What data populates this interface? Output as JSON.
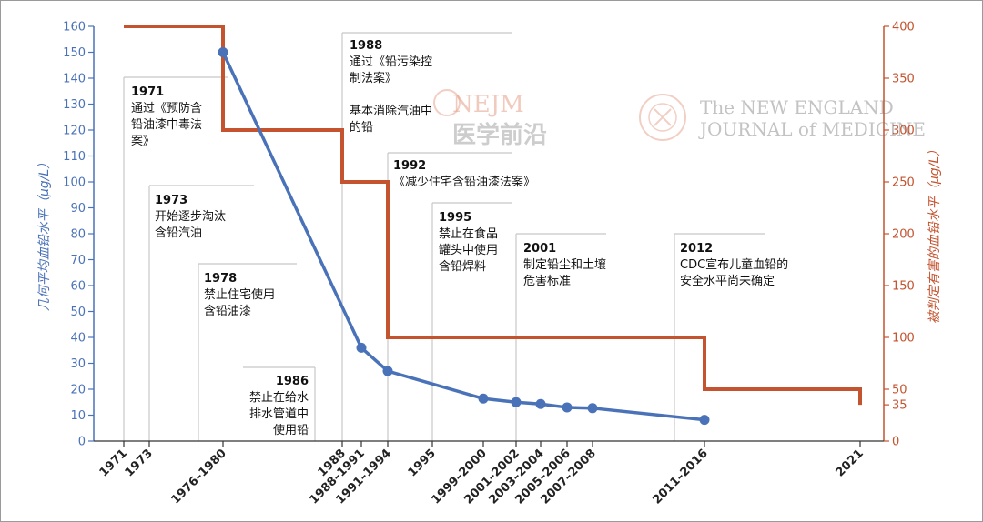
{
  "chart_data": {
    "type": "line",
    "x_ticks": [
      "1971",
      "1973",
      "1976–1980",
      "1988",
      "1988–1991",
      "1991–1994",
      "1995",
      "1999–2000",
      "2001–2002",
      "2003–2004",
      "2005–2006",
      "2007–2008",
      "2011–2016",
      "2021"
    ],
    "y_left": {
      "label": "几何平均血铅水平（μg/L）",
      "ticks": [
        0,
        10,
        20,
        30,
        40,
        50,
        60,
        70,
        80,
        90,
        100,
        110,
        120,
        130,
        140,
        150,
        160
      ],
      "range": [
        0,
        160
      ],
      "color": "#4a72b8"
    },
    "y_right": {
      "label": "被判定有害的血铅水平（μg/L）",
      "ticks": [
        0,
        35,
        50,
        100,
        150,
        200,
        250,
        300,
        350,
        400
      ],
      "range": [
        0,
        400
      ],
      "color": "#c4532f"
    },
    "series": [
      {
        "axis": "left",
        "color": "#4a72b8",
        "points": [
          {
            "x": "1976–1980",
            "y": 150
          },
          {
            "x": "1988–1991",
            "y": 36
          },
          {
            "x": "1991–1994",
            "y": 27
          },
          {
            "x": "1999–2000",
            "y": 16.4
          },
          {
            "x": "2001–2002",
            "y": 15
          },
          {
            "x": "2003–2004",
            "y": 14.3
          },
          {
            "x": "2005–2006",
            "y": 13
          },
          {
            "x": "2007–2008",
            "y": 12.7
          },
          {
            "x": "2011–2016",
            "y": 8.2
          }
        ]
      },
      {
        "axis": "right",
        "step": true,
        "color": "#c4532f",
        "points": [
          {
            "x": "1971",
            "y": 400
          },
          {
            "x": "1976–1980",
            "y": 300
          },
          {
            "x": "1988",
            "y": 250
          },
          {
            "x": "1991–1994",
            "y": 100
          },
          {
            "x": "2011–2016",
            "y": 50
          },
          {
            "x": "2021",
            "y": 35
          }
        ]
      }
    ],
    "annotations": [
      {
        "year": "1971",
        "lines": [
          "通过《预防含",
          "铅油漆中毒法",
          "案》"
        ]
      },
      {
        "year": "1973",
        "lines": [
          "开始逐步淘汰",
          "含铅汽油"
        ]
      },
      {
        "year": "1978",
        "lines": [
          "禁止住宅使用",
          "含铅油漆"
        ]
      },
      {
        "year": "1986",
        "lines": [
          "禁止在给水",
          "排水管道中",
          "使用铅"
        ]
      },
      {
        "year": "1988",
        "lines": [
          "通过《铅污染控",
          "制法案》",
          "",
          "基本消除汽油中",
          "的铅"
        ]
      },
      {
        "year": "1992",
        "lines": [
          "《减少住宅含铅油漆法案》"
        ]
      },
      {
        "year": "1995",
        "lines": [
          "禁止在食品",
          "罐头中使用",
          "含铅焊料"
        ]
      },
      {
        "year": "2001",
        "lines": [
          "制定铅尘和土壤",
          "危害标准"
        ]
      },
      {
        "year": "2012",
        "lines": [
          "CDC宣布儿童血铅的",
          "安全水平尚未确定"
        ]
      }
    ]
  },
  "watermark": {
    "nejm": "NEJM",
    "cn": "医学前沿",
    "journal_line1": "The NEW ENGLAND",
    "journal_line2": "JOURNAL of MEDICINE"
  }
}
